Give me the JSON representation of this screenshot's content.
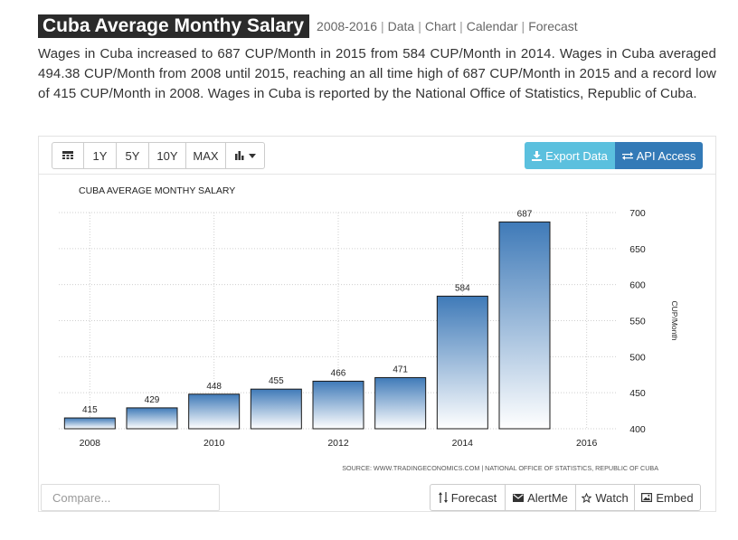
{
  "header": {
    "title": "Cuba Average Monthy Salary",
    "links": [
      "2008-2016",
      "Data",
      "Chart",
      "Calendar",
      "Forecast"
    ]
  },
  "description": "Wages in Cuba increased to 687 CUP/Month in 2015 from 584 CUP/Month in 2014. Wages in Cuba averaged 494.38 CUP/Month from 2008 until 2015, reaching an all time high of 687 CUP/Month in 2015 and a record low of 415 CUP/Month in 2008. Wages in Cuba is reported by the National Office of Statistics, Republic of Cuba.",
  "toolbar": {
    "range_buttons": [
      "1Y",
      "5Y",
      "10Y",
      "MAX"
    ],
    "export_label": "Export Data",
    "api_label": "API Access",
    "icons": {
      "calendar": "calendar-icon",
      "chart_type": "bar-chart-icon",
      "export": "download-icon",
      "api": "exchange-icon"
    }
  },
  "footer": {
    "compare_placeholder": "Compare...",
    "forecast_label": "Forecast",
    "alert_label": "AlertMe",
    "watch_label": "Watch",
    "embed_label": "Embed"
  },
  "colors": {
    "bar_top": "#3f7ab8",
    "bar_bottom": "#ffffff",
    "bar_stroke": "#1a1a1a",
    "title_bg": "#2b2b2b",
    "export_bg": "#5bc0de",
    "api_bg": "#337ab7"
  },
  "chart_data": {
    "type": "bar",
    "title": "CUBA AVERAGE MONTHY SALARY",
    "categories": [
      "2008",
      "2009",
      "2010",
      "2011",
      "2012",
      "2013",
      "2014",
      "2015"
    ],
    "values": [
      415,
      429,
      448,
      455,
      466,
      471,
      584,
      687
    ],
    "x_ticks": [
      "2008",
      "2010",
      "2012",
      "2014",
      "2016"
    ],
    "y_ticks": [
      400,
      450,
      500,
      550,
      600,
      650,
      700
    ],
    "ylim": [
      400,
      700
    ],
    "ylabel": "CUP/Month",
    "y_axis_position": "right",
    "grid": true,
    "source": "SOURCE: WWW.TRADINGECONOMICS.COM | NATIONAL OFFICE OF STATISTICS, REPUBLIC OF CUBA"
  }
}
